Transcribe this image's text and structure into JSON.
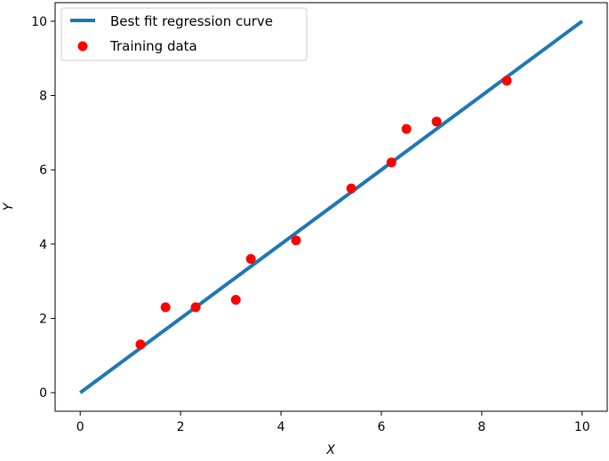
{
  "chart_data": {
    "type": "scatter",
    "title": "",
    "xlabel": "X",
    "ylabel": "Y",
    "xlim": [
      -0.5,
      10.5
    ],
    "ylim": [
      -0.5,
      10.5
    ],
    "xticks": [
      0,
      2,
      4,
      6,
      8,
      10
    ],
    "yticks": [
      0,
      2,
      4,
      6,
      8,
      10
    ],
    "grid": false,
    "legend_position": "top-left",
    "series": [
      {
        "name": "Best fit regression curve",
        "type": "line",
        "color": "#1f77b4",
        "x": [
          0,
          10
        ],
        "y": [
          0,
          10
        ]
      },
      {
        "name": "Training data",
        "type": "scatter",
        "color": "#ff0000",
        "x": [
          1.2,
          1.7,
          2.3,
          3.1,
          3.4,
          4.3,
          5.4,
          6.2,
          6.5,
          7.1,
          8.5
        ],
        "y": [
          1.3,
          2.3,
          2.3,
          2.5,
          3.6,
          4.1,
          5.5,
          6.2,
          7.1,
          7.3,
          8.4
        ]
      }
    ]
  }
}
